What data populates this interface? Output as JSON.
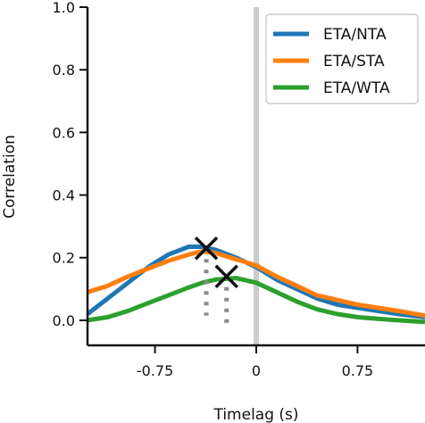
{
  "chart_data": {
    "type": "line",
    "xlabel": "Timelag (s)",
    "ylabel": "Correlation",
    "xlim": [
      -1.25,
      1.25
    ],
    "ylim": [
      -0.08,
      1.0
    ],
    "xticks": [
      {
        "value": -0.75,
        "label": "-0.75"
      },
      {
        "value": 0,
        "label": "0"
      },
      {
        "value": 0.75,
        "label": "0.75"
      }
    ],
    "yticks": [
      {
        "value": 0.0,
        "label": "0.0"
      },
      {
        "value": 0.2,
        "label": "0.2"
      },
      {
        "value": 0.4,
        "label": "0.4"
      },
      {
        "value": 0.6,
        "label": "0.6"
      },
      {
        "value": 0.8,
        "label": "0.8"
      },
      {
        "value": 1.0,
        "label": "1.0"
      }
    ],
    "zero_line": {
      "x": 0,
      "color": "#cccccc"
    },
    "grid": false,
    "legend_position": "top-right",
    "series": [
      {
        "name": "ETA/NTA",
        "color": "#1f77b4",
        "x": [
          -1.25,
          -1.1,
          -0.95,
          -0.8,
          -0.65,
          -0.5,
          -0.4,
          -0.3,
          -0.15,
          0,
          0.15,
          0.3,
          0.45,
          0.6,
          0.75,
          0.9,
          1.05,
          1.25
        ],
        "y": [
          0.02,
          0.07,
          0.12,
          0.17,
          0.21,
          0.235,
          0.235,
          0.225,
          0.2,
          0.17,
          0.13,
          0.1,
          0.07,
          0.05,
          0.04,
          0.03,
          0.02,
          0.01
        ]
      },
      {
        "name": "ETA/STA",
        "color": "#ff7f0e",
        "x": [
          -1.25,
          -1.1,
          -0.95,
          -0.8,
          -0.65,
          -0.5,
          -0.4,
          -0.3,
          -0.15,
          0,
          0.15,
          0.3,
          0.45,
          0.6,
          0.75,
          0.9,
          1.05,
          1.25
        ],
        "y": [
          0.09,
          0.11,
          0.14,
          0.165,
          0.19,
          0.21,
          0.22,
          0.215,
          0.195,
          0.175,
          0.14,
          0.11,
          0.08,
          0.065,
          0.05,
          0.04,
          0.03,
          0.015
        ]
      },
      {
        "name": "ETA/WTA",
        "color": "#2ca02c",
        "x": [
          -1.25,
          -1.1,
          -0.95,
          -0.8,
          -0.65,
          -0.5,
          -0.4,
          -0.3,
          -0.15,
          0,
          0.15,
          0.3,
          0.45,
          0.6,
          0.75,
          0.9,
          1.05,
          1.25
        ],
        "y": [
          0.0,
          0.01,
          0.03,
          0.055,
          0.08,
          0.105,
          0.12,
          0.13,
          0.135,
          0.12,
          0.09,
          0.06,
          0.035,
          0.02,
          0.01,
          0.005,
          0.0,
          -0.005
        ]
      }
    ],
    "peaks": [
      {
        "x": -0.37,
        "y": 0.23,
        "baseline": 0.015,
        "color": "#111111",
        "drop_color": "#888888"
      },
      {
        "x": -0.22,
        "y": 0.14,
        "baseline": -0.01,
        "color": "#111111",
        "drop_color": "#888888"
      }
    ]
  }
}
